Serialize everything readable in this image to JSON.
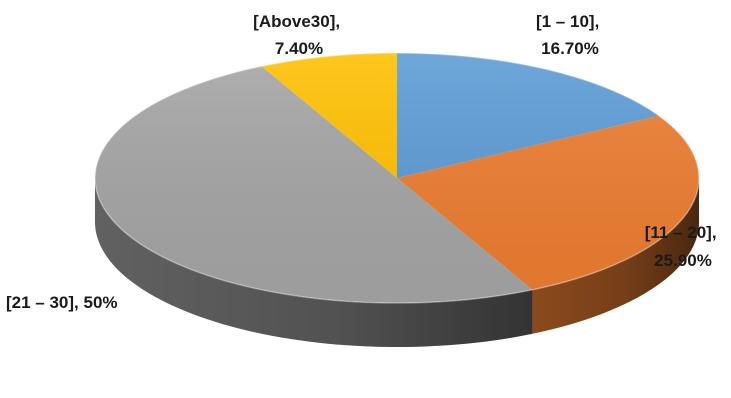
{
  "chart_data": {
    "type": "pie",
    "style": "3d",
    "title": "",
    "slices": [
      {
        "category": "[1 – 10]",
        "value": 16.7,
        "value_label": "16.70%",
        "color": "#5B9BD5"
      },
      {
        "category": "[11 – 20]",
        "value": 25.9,
        "value_label": "25.90%",
        "color": "#ED7D31"
      },
      {
        "category": "[21 – 30]",
        "value": 50,
        "value_label": "50%",
        "color": "#A5A5A5"
      },
      {
        "category": "[Above30]",
        "value": 7.4,
        "value_label": "7.40%",
        "color": "#FFC000"
      }
    ],
    "legend": "none"
  }
}
